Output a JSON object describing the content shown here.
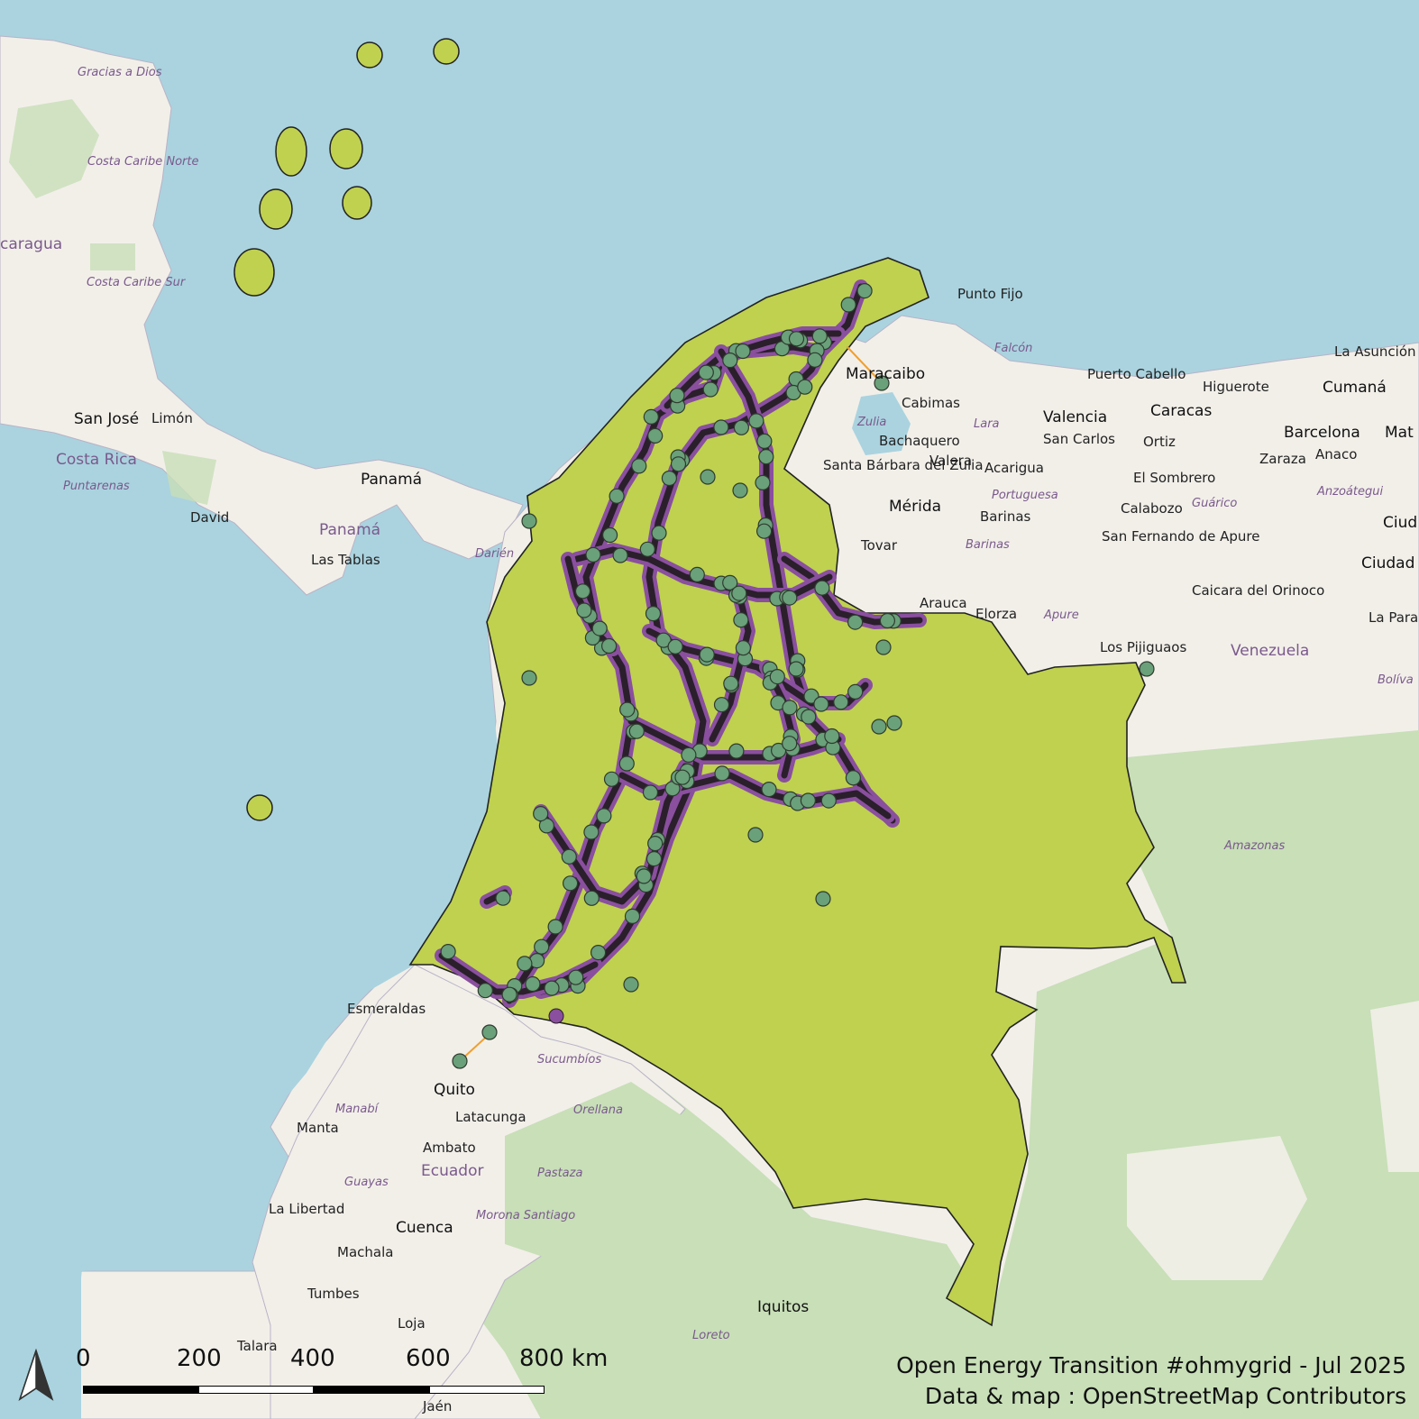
{
  "title": "Open Energy Transition #ohmygrid - Jul 2025",
  "credit": "Data & map : OpenStreetMap Contributors",
  "scale_bar": {
    "labels": [
      "0",
      "200",
      "400",
      "600",
      "800 km"
    ]
  },
  "colors": {
    "sea": "#aad3df",
    "land": "#f2efe9",
    "forest": "#c8dfb8",
    "country_fill": "#bfd14f",
    "line_color": "#2a1f2b",
    "line_highlight": "#8a4f9e",
    "substation": "#6aa07a"
  },
  "place_labels": {
    "cities": [
      "Maracaibo",
      "Cabimas",
      "Bachaquero",
      "Valencia",
      "San Carlos",
      "Caracas",
      "Barcelona",
      "Cumaná",
      "Higuerote",
      "Puerto Cabello",
      "Punto Fijo",
      "Acarigua",
      "Barinas",
      "Mérida",
      "Valera",
      "Tovar",
      "Santa Bárbara del Zulia",
      "Calabozo",
      "El Sombrero",
      "Ortiz",
      "Zaraza",
      "Anaco",
      "San Fernando de Apure",
      "Caicara del Orinoco",
      "Elorza",
      "Arauca",
      "Los Pijiguaos",
      "La Asunción",
      "Panamá",
      "Las Tablas",
      "David",
      "San José",
      "Limón",
      "Puntarenas",
      "Quito",
      "Latacunga",
      "Ambato",
      "Cuenca",
      "Machala",
      "Manta",
      "La Libertad",
      "Esmeraldas",
      "Tumbes",
      "Talara",
      "Loja",
      "Jaén",
      "Iquitos",
      "Ciudad Bo",
      "La Para",
      "Mat",
      "Ciud"
    ],
    "countries": [
      "Venezuela",
      "Panamá",
      "Costa Rica",
      "Ecuador",
      "caragua"
    ],
    "regions": [
      "Falcón",
      "Lara",
      "Zulia",
      "Portuguesa",
      "Barinas",
      "Apure",
      "Guárico",
      "Anzoátegui",
      "Darién",
      "Sucumbíos",
      "Orellana",
      "Pastaza",
      "Manabí",
      "Guayas",
      "Morona Santiago",
      "Amazonas",
      "Loreto",
      "Costa Caribe Norte",
      "Costa Caribe Sur",
      "Gracias a Dios",
      "Bolíva"
    ]
  }
}
